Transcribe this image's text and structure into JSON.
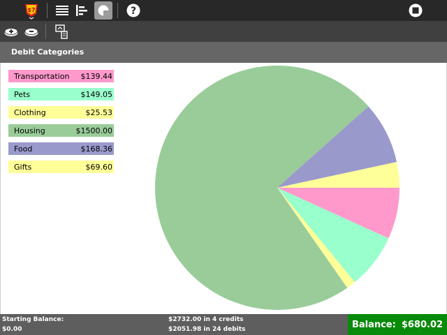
{
  "header": {
    "title": "Debit Categories"
  },
  "categories": [
    {
      "name": "Transportation",
      "amount": "$139.44",
      "value": 139.44,
      "color": "#ff99cc"
    },
    {
      "name": "Pets",
      "amount": "$149.05",
      "value": 149.05,
      "color": "#99ffcc"
    },
    {
      "name": "Clothing",
      "amount": "$25.53",
      "value": 25.53,
      "color": "#ffff99"
    },
    {
      "name": "Housing",
      "amount": "$1500.00",
      "value": 1500.0,
      "color": "#99cc99"
    },
    {
      "name": "Food",
      "amount": "$168.36",
      "value": 168.36,
      "color": "#9999cc"
    },
    {
      "name": "Gifts",
      "amount": "$69.60",
      "value": 69.6,
      "color": "#ffff99"
    }
  ],
  "footer": {
    "starting_label": "Starting Balance:",
    "starting_value": "$0.00",
    "credits": "$2732.00 in 4 credits",
    "debits": "$2051.98 in 24 debits",
    "balance_label": "Balance:",
    "balance_value": "$680.02"
  },
  "icons": {
    "activity": "activity-logo-icon",
    "list_view": "list-view-icon",
    "bar_view": "bar-chart-view-icon",
    "pie_view": "pie-chart-view-icon",
    "help": "help-icon",
    "stop": "stop-icon",
    "add_credit": "add-credit-icon",
    "add_debit": "add-debit-icon",
    "export": "export-icon"
  }
}
